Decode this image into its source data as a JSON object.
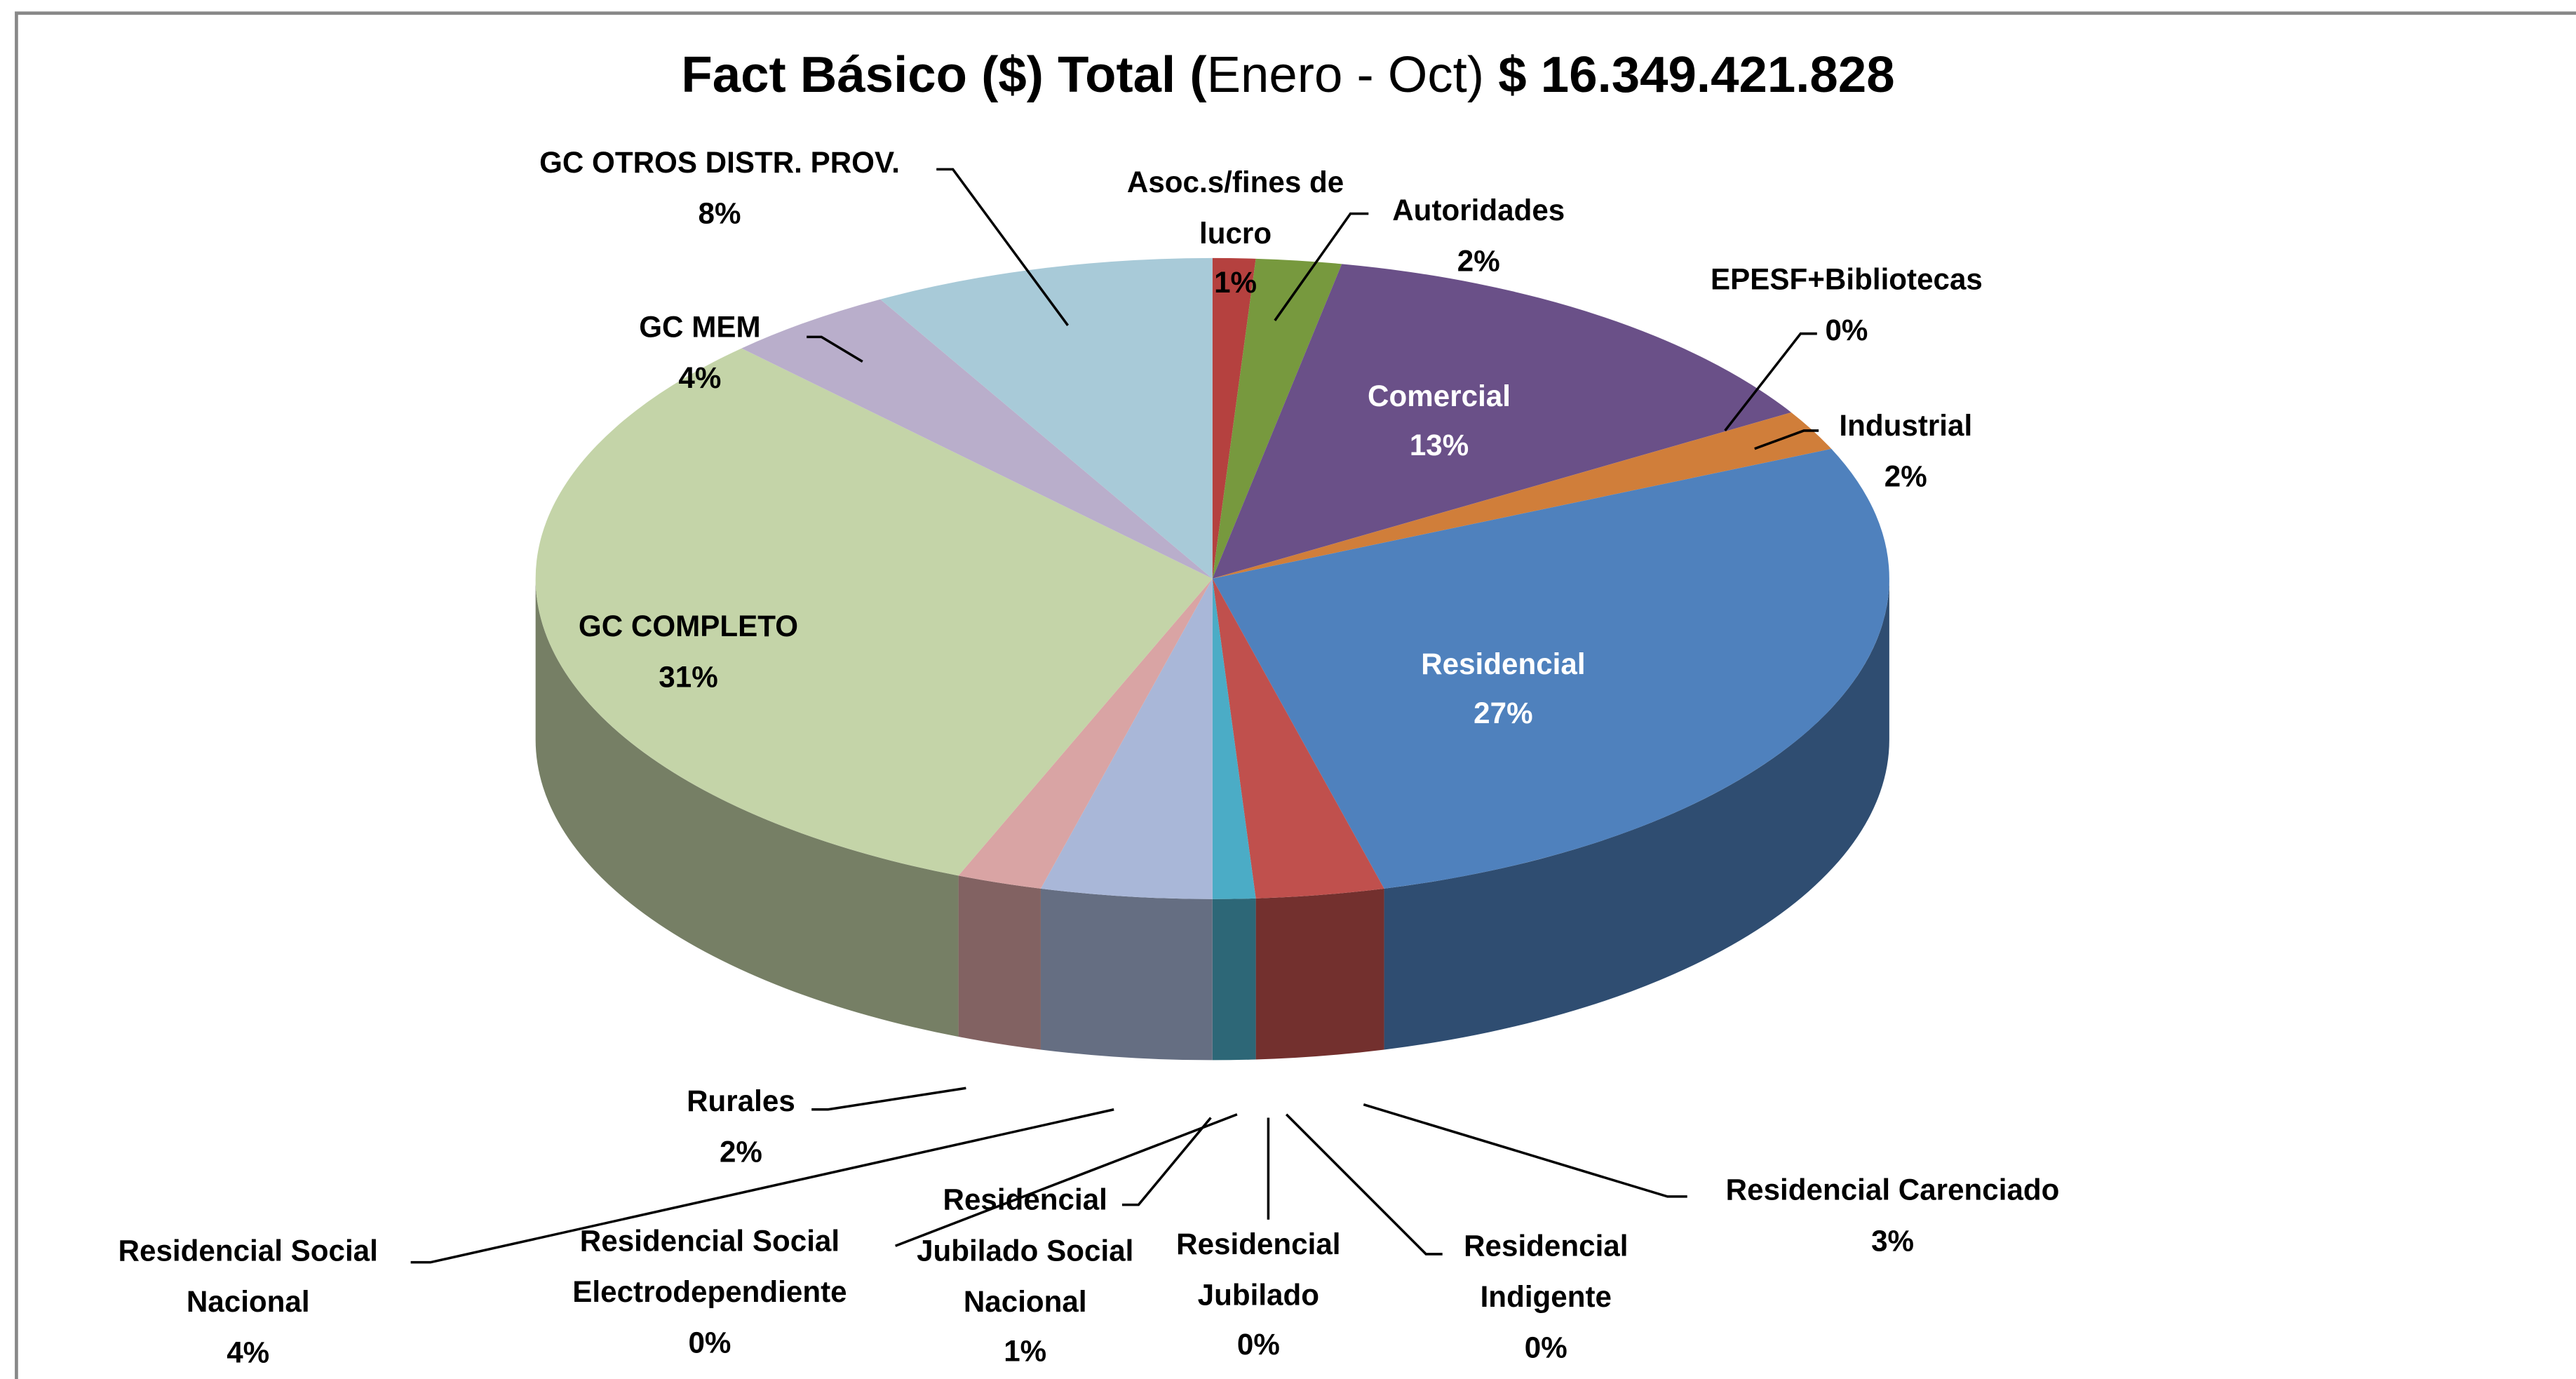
{
  "chart_data": {
    "type": "pie3d",
    "title": [
      "Fact Básico ($) Total (",
      "Enero - Oct)",
      "$ 16.349.421.828"
    ],
    "categories": [
      "Asoc.s/fines de lucro",
      "Autoridades",
      "Comercial",
      "EPESF+Bibliotecas",
      "Industrial",
      "Residencial",
      "Residencial Carenciado",
      "Residencial Indigente",
      "Residencial Jubilado",
      "Residencial Jubilado Social Nacional",
      "Residencial Social Electrodependiente",
      "Residencial Social Nacional",
      "Rurales",
      "GC COMPLETO",
      "GC MEM",
      "GC OTROS DISTR. PROV."
    ],
    "values": [
      1,
      2,
      13,
      0,
      2,
      27,
      3,
      0,
      0,
      1,
      0,
      4,
      2,
      31,
      4,
      8
    ],
    "value_labels": [
      "1%",
      "2%",
      "13%",
      "0%",
      "2%",
      "27%",
      "3%",
      "0%",
      "0%",
      "1%",
      "0%",
      "4%",
      "2%",
      "31%",
      "4%",
      "8%"
    ],
    "colors": [
      "#b5413f",
      "#77993e",
      "#6a5088",
      "#3c8ea0",
      "#d07e3a",
      "#4f81bd",
      "#c0504d",
      "#9bbb59",
      "#8064a2",
      "#4bacc6",
      "#f79646",
      "#a9b7d8",
      "#d9a4a4",
      "#c4d4a8",
      "#b9aecb",
      "#a8cad8"
    ]
  }
}
